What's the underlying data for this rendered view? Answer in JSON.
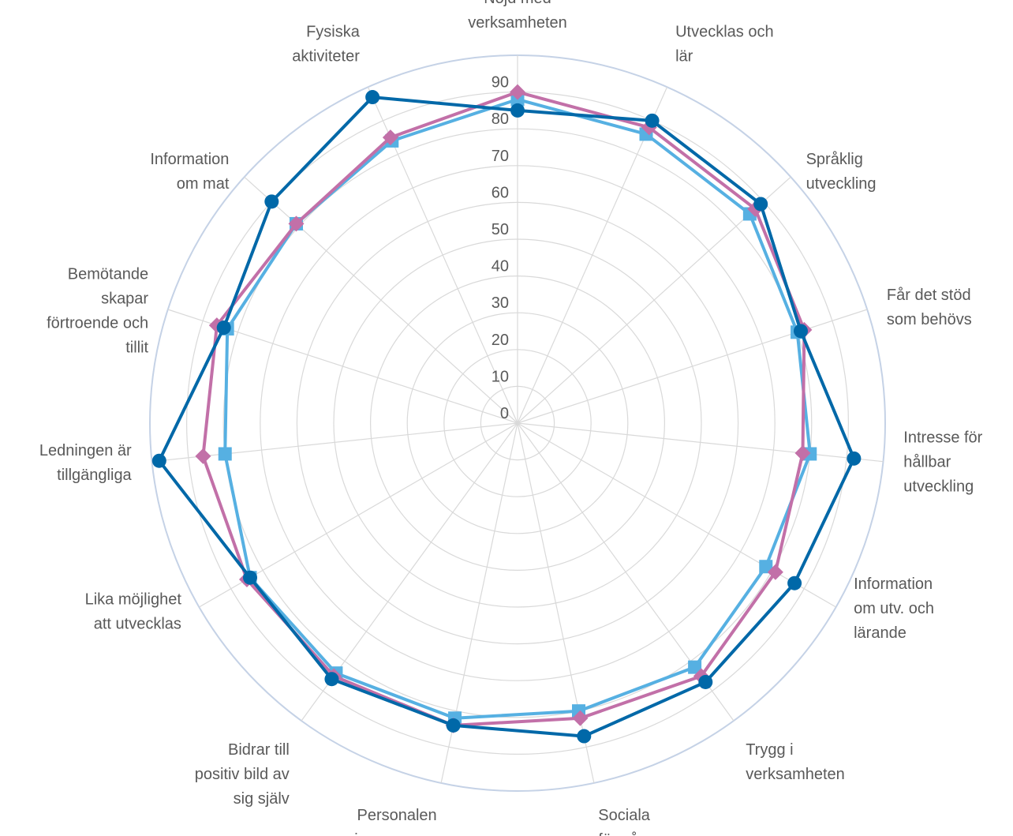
{
  "chart_data": {
    "type": "radar",
    "rmin": 0,
    "rmax": 100,
    "ticks": [
      0,
      10,
      20,
      30,
      40,
      50,
      60,
      70,
      80,
      90
    ],
    "categories": [
      "Nöjd med verksamheten",
      "Utvecklas och lär",
      "Språklig utveckling",
      "Får det stöd som behövs",
      "Intresse för hållbar utveckling",
      "Information om utv. och lärande",
      "Trygg i verksamheten",
      "Sociala förmågor",
      "Personalen visar omsorg",
      "Bidrar till positiv bild av sig själv",
      "Lika möjlighet att utvecklas",
      "Ledningen är tillgängliga",
      "Bemötande skapar förtroende och tillit",
      "Information om mat",
      "Fysiska aktiviteter"
    ],
    "category_label_lines": [
      [
        "Nöjd med",
        "verksamheten"
      ],
      [
        "Utvecklas och",
        "lär"
      ],
      [
        "Språklig",
        "utveckling"
      ],
      [
        "Får det stöd",
        "som behövs"
      ],
      [
        "Intresse för",
        "hållbar",
        "utveckling"
      ],
      [
        "Information",
        "om utv. och",
        "lärande"
      ],
      [
        "Trygg i",
        "verksamheten"
      ],
      [
        "Sociala",
        "förmågor"
      ],
      [
        "Personalen",
        "visar omsorg"
      ],
      [
        "Bidrar till",
        "positiv bild av",
        "sig själv"
      ],
      [
        "Lika möjlighet",
        "att utvecklas"
      ],
      [
        "Ledningen är",
        "tillgängliga"
      ],
      [
        "Bemötande",
        "skapar",
        "förtroende och",
        "tillit"
      ],
      [
        "Information",
        "om mat"
      ],
      [
        "Fysiska",
        "aktiviteter"
      ]
    ],
    "series": [
      {
        "marker": "square",
        "color": "#56b0e2",
        "values": [
          88,
          86,
          85,
          80,
          80,
          78,
          82,
          80,
          82,
          84,
          84,
          80,
          83,
          81,
          84
        ]
      },
      {
        "marker": "diamond",
        "color": "#c270a8",
        "values": [
          90,
          88,
          87,
          82,
          78,
          81,
          85,
          82,
          84,
          85,
          85,
          86,
          86,
          81,
          85
        ]
      },
      {
        "marker": "circle",
        "color": "#0068a8",
        "values": [
          85,
          90,
          89,
          81,
          92,
          87,
          87,
          87,
          84,
          86,
          84,
          98,
          84,
          90,
          97
        ]
      }
    ],
    "legend": "none",
    "grid": true
  }
}
